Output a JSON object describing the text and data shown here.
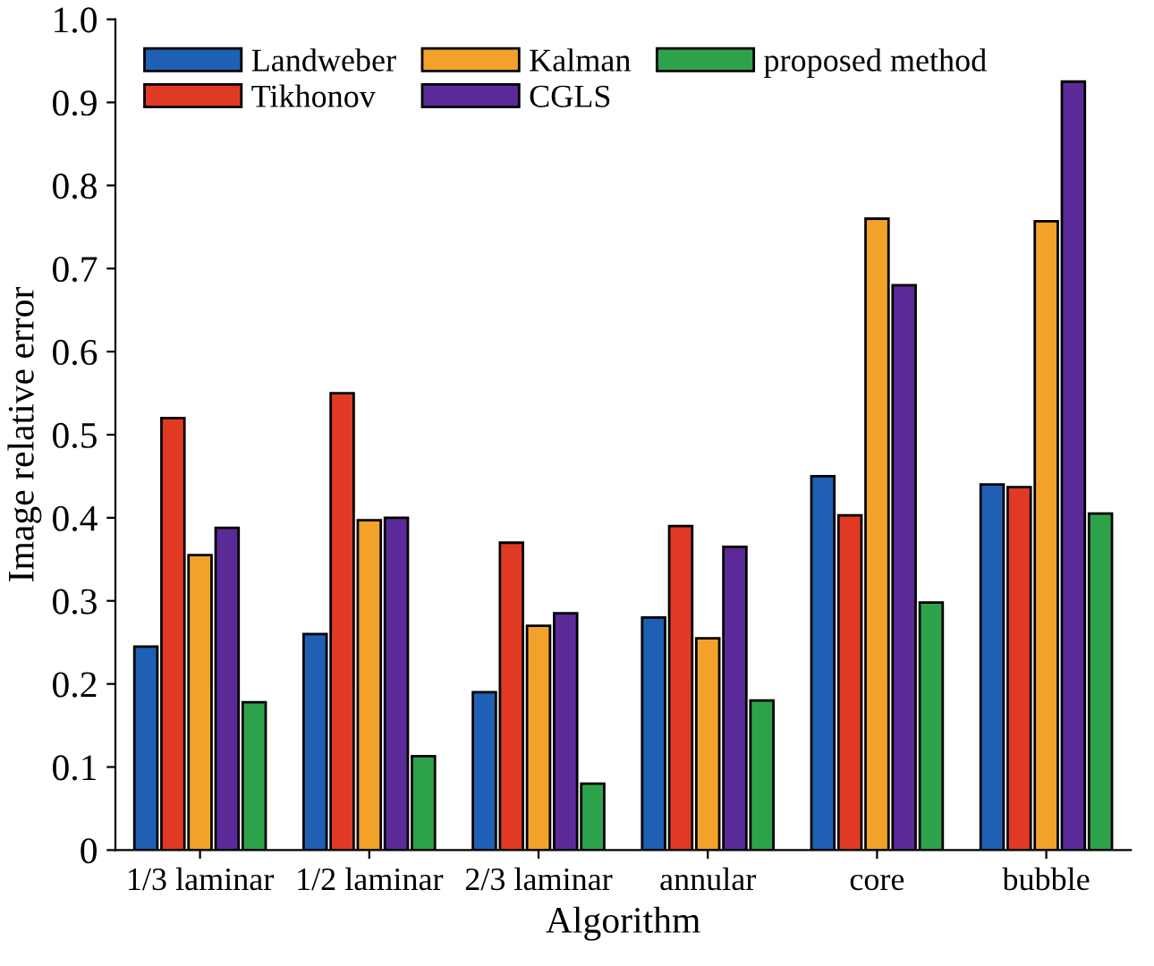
{
  "chart_data": {
    "type": "bar",
    "xlabel": "Algorithm",
    "ylabel": "Image relative error",
    "categories": [
      "1/3 laminar",
      "1/2 laminar",
      "2/3 laminar",
      "annular",
      "core",
      "bubble"
    ],
    "series": [
      {
        "name": "Landweber",
        "color": "#1f5fb4",
        "values": [
          0.245,
          0.26,
          0.19,
          0.28,
          0.45,
          0.44
        ]
      },
      {
        "name": "Tikhonov",
        "color": "#e03a24",
        "values": [
          0.52,
          0.55,
          0.37,
          0.39,
          0.403,
          0.437
        ]
      },
      {
        "name": "Kalman",
        "color": "#f2a22a",
        "values": [
          0.355,
          0.397,
          0.27,
          0.255,
          0.76,
          0.757
        ]
      },
      {
        "name": "CGLS",
        "color": "#5a2a98",
        "values": [
          0.388,
          0.4,
          0.285,
          0.365,
          0.68,
          0.925
        ]
      },
      {
        "name": "proposed method",
        "color": "#2ea24a",
        "values": [
          0.178,
          0.113,
          0.08,
          0.18,
          0.298,
          0.405
        ]
      }
    ],
    "ylim": [
      0,
      1.0
    ],
    "yticks": [
      0,
      0.1,
      0.2,
      0.3,
      0.4,
      0.5,
      0.6,
      0.7,
      0.8,
      0.9,
      {
        "value": 1.0,
        "label": "1.0"
      }
    ],
    "grid": false,
    "legend": "top left"
  }
}
